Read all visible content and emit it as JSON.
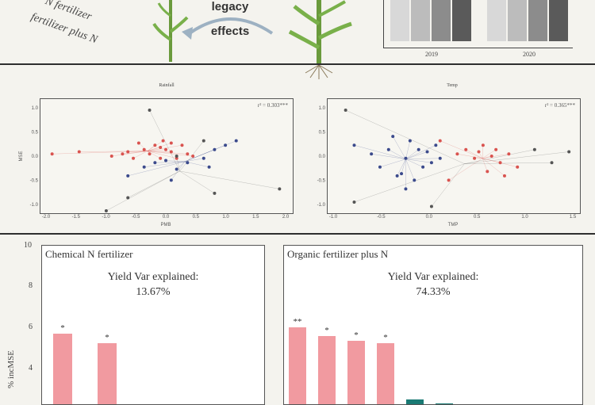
{
  "header": {
    "label_n_fertilizer": "N fertilizer",
    "label_fertilizer_plus_n": "fertilizer plus N",
    "legacy_line1": "legacy",
    "legacy_line2": "effects",
    "year_2019": "2019",
    "year_2020": "2020",
    "colors": {
      "stem": "#6a9a3c",
      "leaf": "#79b04a",
      "arrow": "#9db1c2"
    }
  },
  "scatter_panels": [
    {
      "title": "Rainfall",
      "subtitle": "",
      "stat": "r² = 0.303***",
      "xlabel": "PMB",
      "ylabel": "MSE",
      "x_ticks": [
        "-2.0",
        "-1.5",
        "-1.0",
        "-0.5",
        "0.0",
        "0.5",
        "1.0",
        "1.5",
        "2.0"
      ],
      "y_ticks": [
        "1.0",
        "0.5",
        "0.0",
        "-0.5",
        "-1.0"
      ]
    },
    {
      "title": "Temp",
      "subtitle": "",
      "stat": "r² = 0.365***",
      "xlabel": "TMP",
      "ylabel": "",
      "x_ticks": [
        "-1.0",
        "-0.5",
        "0.0",
        "0.5",
        "1.0",
        "1.5"
      ],
      "y_ticks": [
        "1.0",
        "0.5",
        "0.0",
        "-0.5",
        "-1.0"
      ]
    }
  ],
  "chart_data": [
    {
      "type": "scatter",
      "title": "Rainfall",
      "xlim": [
        -2.2,
        2.4
      ],
      "ylim": [
        -1.3,
        1.2
      ],
      "series": [
        {
          "color": "#d9534f",
          "points": [
            [
              -2.0,
              0.0
            ],
            [
              -1.5,
              0.05
            ],
            [
              -0.9,
              -0.05
            ],
            [
              -0.7,
              0.0
            ],
            [
              -0.5,
              -0.1
            ],
            [
              -0.3,
              0.1
            ],
            [
              -0.2,
              0.0
            ],
            [
              -0.1,
              0.2
            ],
            [
              0.0,
              0.15
            ],
            [
              0.05,
              0.3
            ],
            [
              0.1,
              0.1
            ],
            [
              0.2,
              0.05
            ],
            [
              0.3,
              -0.1
            ],
            [
              0.4,
              0.2
            ],
            [
              0.5,
              0.0
            ],
            [
              -0.4,
              0.25
            ],
            [
              0.0,
              -0.1
            ],
            [
              0.6,
              -0.05
            ],
            [
              -0.6,
              0.05
            ],
            [
              0.2,
              0.25
            ]
          ]
        },
        {
          "color": "#3b4a8c",
          "points": [
            [
              -0.3,
              -0.3
            ],
            [
              -0.1,
              -0.2
            ],
            [
              0.1,
              -0.15
            ],
            [
              0.3,
              -0.35
            ],
            [
              0.5,
              -0.2
            ],
            [
              0.8,
              -0.1
            ],
            [
              1.0,
              0.1
            ],
            [
              1.2,
              0.2
            ],
            [
              1.4,
              0.3
            ],
            [
              -0.6,
              -0.5
            ],
            [
              0.2,
              -0.6
            ],
            [
              0.9,
              -0.3
            ]
          ]
        },
        {
          "color": "#555555",
          "points": [
            [
              -0.2,
              1.0
            ],
            [
              -0.6,
              -1.0
            ],
            [
              0.8,
              0.3
            ],
            [
              1.0,
              -0.9
            ],
            [
              2.2,
              -0.8
            ],
            [
              -1.0,
              -1.3
            ],
            [
              0.3,
              -0.05
            ]
          ]
        }
      ]
    },
    {
      "type": "scatter",
      "title": "Temp",
      "xlim": [
        -1.2,
        1.7
      ],
      "ylim": [
        -1.3,
        1.2
      ],
      "series": [
        {
          "color": "#3b4a8c",
          "points": [
            [
              -0.9,
              0.2
            ],
            [
              -0.7,
              0.0
            ],
            [
              -0.6,
              -0.3
            ],
            [
              -0.5,
              0.1
            ],
            [
              -0.4,
              -0.5
            ],
            [
              -0.3,
              -0.1
            ],
            [
              -0.25,
              0.3
            ],
            [
              -0.2,
              -0.6
            ],
            [
              -0.15,
              0.1
            ],
            [
              -0.1,
              -0.3
            ],
            [
              -0.05,
              0.05
            ],
            [
              0.0,
              -0.2
            ],
            [
              0.05,
              0.2
            ],
            [
              -0.3,
              -0.8
            ],
            [
              -0.45,
              0.4
            ],
            [
              -0.35,
              -0.45
            ],
            [
              0.1,
              -0.1
            ]
          ]
        },
        {
          "color": "#d9534f",
          "points": [
            [
              0.3,
              0.0
            ],
            [
              0.4,
              0.1
            ],
            [
              0.5,
              -0.1
            ],
            [
              0.55,
              0.05
            ],
            [
              0.6,
              0.2
            ],
            [
              0.7,
              -0.05
            ],
            [
              0.75,
              0.1
            ],
            [
              0.8,
              -0.2
            ],
            [
              0.9,
              0.0
            ],
            [
              1.0,
              -0.3
            ],
            [
              0.65,
              -0.4
            ],
            [
              0.85,
              -0.5
            ],
            [
              0.2,
              -0.6
            ],
            [
              0.1,
              0.3
            ]
          ]
        },
        {
          "color": "#555555",
          "points": [
            [
              -1.0,
              1.0
            ],
            [
              -0.9,
              -1.1
            ],
            [
              1.2,
              0.1
            ],
            [
              1.4,
              -0.2
            ],
            [
              1.6,
              0.05
            ],
            [
              0.0,
              -1.2
            ]
          ]
        }
      ]
    },
    {
      "type": "bar",
      "title": "Chemical N fertilizer",
      "ylabel": "% incMSE",
      "ylim": [
        3,
        10
      ],
      "yticks": [
        "10",
        "8",
        "6",
        "4"
      ],
      "values": [
        6.1,
        5.7
      ],
      "stars": [
        "*",
        "*"
      ],
      "colors": [
        "#f19aa0",
        "#f19aa0"
      ]
    },
    {
      "type": "bar",
      "title": "Organic fertilizer plus N",
      "ylabel": "",
      "ylim": [
        3,
        10
      ],
      "values": [
        6.4,
        6.0,
        5.8,
        5.7,
        3.2,
        3.05,
        3.0
      ],
      "stars": [
        "**",
        "*",
        "*",
        "*",
        "",
        "",
        ""
      ],
      "colors": [
        "#f19aa0",
        "#f19aa0",
        "#f19aa0",
        "#f19aa0",
        "#1a7a74",
        "#1a7a74",
        "#1a7a74"
      ]
    }
  ],
  "bar_panels": [
    {
      "title": "Chemical N fertilizer",
      "var_label": "Yield Var explained:",
      "var_value": "13.67%"
    },
    {
      "title": "Organic fertilizer plus N",
      "var_label": "Yield Var explained:",
      "var_value": "74.33%"
    }
  ],
  "bar_axis": {
    "ylabel": "% incMSE",
    "ticks": [
      "10",
      "8",
      "6",
      "4"
    ]
  }
}
